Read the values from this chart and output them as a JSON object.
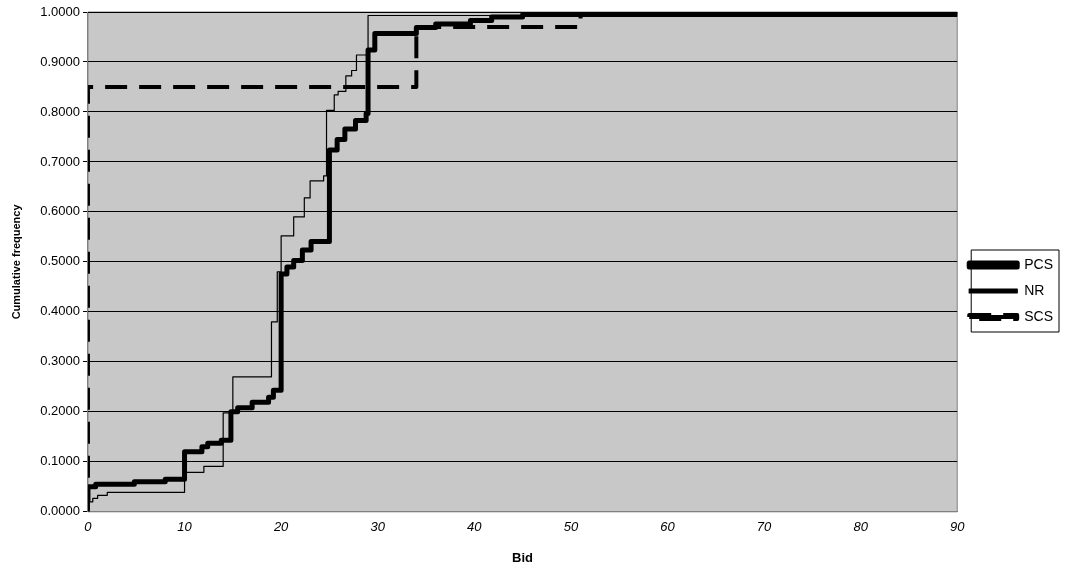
{
  "chart_data": {
    "type": "step",
    "xlabel": "Bid",
    "ylabel": "Cumulative frequency",
    "xlim": [
      0,
      90
    ],
    "xticks": [
      0,
      10,
      20,
      30,
      40,
      50,
      60,
      70,
      80,
      90
    ],
    "ylim": [
      0,
      1
    ],
    "yticks": [
      {
        "value": 0,
        "label": "0.0000"
      },
      {
        "value": 0.1,
        "label": "0.1000"
      },
      {
        "value": 0.2,
        "label": "0.2000"
      },
      {
        "value": 0.3,
        "label": "0.3000"
      },
      {
        "value": 0.4,
        "label": "0.4000"
      },
      {
        "value": 0.5,
        "label": "0.5000"
      },
      {
        "value": 0.6,
        "label": "0.6000"
      },
      {
        "value": 0.7,
        "label": "0.7000"
      },
      {
        "value": 0.8,
        "label": "0.8000"
      },
      {
        "value": 0.9,
        "label": "0.9000"
      },
      {
        "value": 1,
        "label": "1.0000"
      }
    ],
    "grid": "y",
    "legend": "right",
    "marker": "none",
    "series": [
      {
        "name": "PCS",
        "color": "#000000",
        "line_style": "solid",
        "x": [
          0,
          0,
          0.8,
          4.8,
          8,
          10,
          11.8,
          12.4,
          13.8,
          14.8,
          15.5,
          17,
          18.7,
          19.2,
          20,
          20.6,
          21.3,
          22.2,
          23.1,
          25,
          25.8,
          26.6,
          27.7,
          28.8,
          29,
          29.7,
          34,
          36,
          39.6,
          41.8,
          45,
          80,
          90
        ],
        "values": [
          0.02,
          0.05,
          0.055,
          0.06,
          0.065,
          0.12,
          0.13,
          0.137,
          0.143,
          0.2,
          0.208,
          0.219,
          0.229,
          0.243,
          0.476,
          0.49,
          0.503,
          0.524,
          0.541,
          0.724,
          0.745,
          0.766,
          0.783,
          0.797,
          0.924,
          0.957,
          0.969,
          0.976,
          0.983,
          0.99,
          0.995,
          0.995,
          1.0
        ]
      },
      {
        "name": "NR",
        "color": "#000000",
        "line_style": "solid",
        "x": [
          0,
          0.5,
          1,
          2,
          10,
          12,
          14,
          15,
          19,
          19.6,
          20,
          21.3,
          22.4,
          23,
          24.4,
          24.7,
          25.5,
          25.9,
          26.7,
          27.3,
          27.8,
          29,
          90
        ],
        "values": [
          0.02,
          0.027,
          0.033,
          0.039,
          0.079,
          0.091,
          0.198,
          0.27,
          0.38,
          0.48,
          0.552,
          0.59,
          0.628,
          0.662,
          0.672,
          0.803,
          0.834,
          0.841,
          0.872,
          0.883,
          0.914,
          0.993,
          1.0
        ]
      },
      {
        "name": "SCS",
        "color": "#000000",
        "line_style": "dashed",
        "x": [
          0,
          0,
          34,
          51,
          90
        ],
        "values": [
          0,
          0.85,
          0.97,
          1.0,
          1.0
        ]
      }
    ]
  }
}
